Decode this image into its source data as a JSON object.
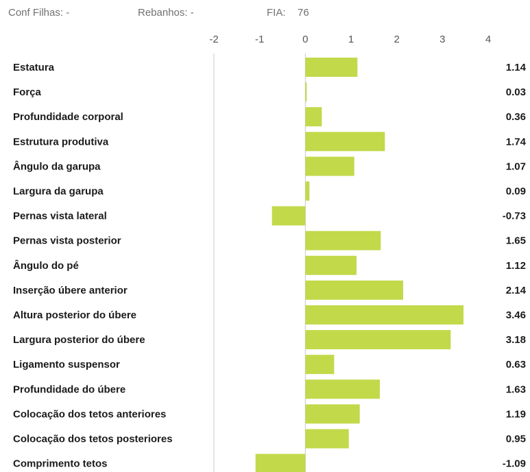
{
  "header": {
    "conf_filhas": "Conf Filhas: -",
    "rebanhos": "Rebanhos: -",
    "fia_label": "FIA:",
    "fia_value": "76"
  },
  "chart_data": {
    "type": "bar",
    "orientation": "horizontal",
    "xlim": [
      -2,
      4
    ],
    "ticks": [
      "-2",
      "-1",
      "0",
      "1",
      "2",
      "3",
      "4"
    ],
    "bar_color": "#c2d94a",
    "categories": [
      "Estatura",
      "Força",
      "Profundidade corporal",
      "Estrutura produtiva",
      "Ângulo da garupa",
      "Largura da garupa",
      "Pernas vista lateral",
      "Pernas vista posterior",
      "Ângulo do pé",
      "Inserção úbere anterior",
      "Altura posterior do úbere",
      "Largura posterior do úbere",
      "Ligamento suspensor",
      "Profundidade do úbere",
      "Colocação dos tetos anteriores",
      "Colocação dos tetos posteriores",
      "Comprimento tetos"
    ],
    "values": [
      1.14,
      0.03,
      0.36,
      1.74,
      1.07,
      0.09,
      -0.73,
      1.65,
      1.12,
      2.14,
      3.46,
      3.18,
      0.63,
      1.63,
      1.19,
      0.95,
      -1.09
    ],
    "value_labels": [
      "1.14",
      "0.03",
      "0.36",
      "1.74",
      "1.07",
      "0.09",
      "-0.73",
      "1.65",
      "1.12",
      "2.14",
      "3.46",
      "3.18",
      "0.63",
      "1.63",
      "1.19",
      "0.95",
      "-1.09"
    ]
  }
}
